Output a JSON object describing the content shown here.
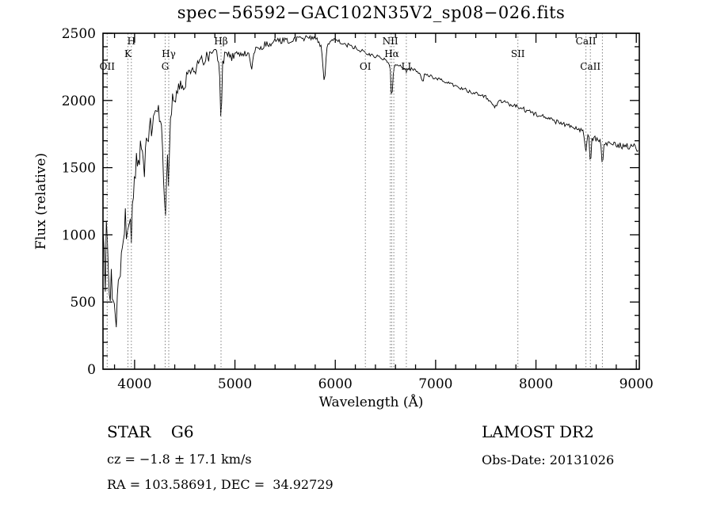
{
  "title": "spec−56592−GAC102N35V2_sp08−026.fits",
  "footer": {
    "object_type": "STAR    G6",
    "survey": "LAMOST DR2",
    "cz": "cz = −1.8 ± 17.1 km/s",
    "obs_date": "Obs-Date: 20131026",
    "ra_dec": "RA = 103.58691, DEC =  34.92729"
  },
  "chart_data": {
    "type": "line",
    "title": "spec-56592-GAC102N35V2_sp08-026.fits",
    "xlabel": "Wavelength (Å)",
    "ylabel": "Flux (relative)",
    "xlim": [
      3685,
      9030
    ],
    "ylim": [
      0,
      2500
    ],
    "x_ticks": [
      4000,
      5000,
      6000,
      7000,
      8000,
      9000
    ],
    "y_ticks": [
      0,
      500,
      1000,
      1500,
      2000,
      2500
    ],
    "x_minor_step": 200,
    "y_minor_step": 100,
    "grid": false,
    "legend": "none",
    "line_color": "#000000",
    "marker_color": "#808080",
    "spectral_lines": [
      {
        "wl": 3727,
        "label": "OII",
        "row": 3
      },
      {
        "wl": 3934,
        "label": "K",
        "row": 2
      },
      {
        "wl": 3968,
        "label": "H",
        "row": 1
      },
      {
        "wl": 4305,
        "label": "G",
        "row": 3
      },
      {
        "wl": 4340,
        "label": "Hγ",
        "row": 2
      },
      {
        "wl": 4861,
        "label": "Hβ",
        "row": 1
      },
      {
        "wl": 6300,
        "label": "OI",
        "row": 3
      },
      {
        "wl": 6548,
        "label": "NII",
        "row": 1
      },
      {
        "wl": 6563,
        "label": "Hα",
        "row": 2
      },
      {
        "wl": 6583,
        "label": "",
        "row": 0
      },
      {
        "wl": 6708,
        "label": "LI",
        "row": 3
      },
      {
        "wl": 7820,
        "label": "SII",
        "row": 2
      },
      {
        "wl": 8498,
        "label": "CaII",
        "row": 1
      },
      {
        "wl": 8542,
        "label": "CaII",
        "row": 3
      },
      {
        "wl": 8662,
        "label": "",
        "row": 0
      }
    ],
    "envelope": [
      [
        3690,
        950
      ],
      [
        3698,
        760
      ],
      [
        3706,
        560
      ],
      [
        3714,
        1020
      ],
      [
        3722,
        1080
      ],
      [
        3727,
        1020
      ],
      [
        3734,
        700
      ],
      [
        3742,
        580
      ],
      [
        3752,
        470
      ],
      [
        3760,
        400
      ],
      [
        3770,
        720
      ],
      [
        3780,
        600
      ],
      [
        3790,
        540
      ],
      [
        3800,
        500
      ],
      [
        3812,
        400
      ],
      [
        3822,
        330
      ],
      [
        3832,
        560
      ],
      [
        3842,
        700
      ],
      [
        3852,
        760
      ],
      [
        3862,
        700
      ],
      [
        3872,
        820
      ],
      [
        3882,
        950
      ],
      [
        3892,
        1060
      ],
      [
        3902,
        1120
      ],
      [
        3912,
        1080
      ],
      [
        3922,
        960
      ],
      [
        3930,
        900
      ],
      [
        3934,
        870
      ],
      [
        3940,
        1060
      ],
      [
        3948,
        1160
      ],
      [
        3956,
        1100
      ],
      [
        3962,
        1030
      ],
      [
        3968,
        990
      ],
      [
        3976,
        1180
      ],
      [
        3984,
        1320
      ],
      [
        4000,
        1470
      ],
      [
        4015,
        1530
      ],
      [
        4030,
        1560
      ],
      [
        4045,
        1600
      ],
      [
        4060,
        1640
      ],
      [
        4080,
        1660
      ],
      [
        4101,
        1450
      ],
      [
        4115,
        1680
      ],
      [
        4130,
        1740
      ],
      [
        4150,
        1780
      ],
      [
        4170,
        1820
      ],
      [
        4190,
        1860
      ],
      [
        4210,
        1880
      ],
      [
        4230,
        1900
      ],
      [
        4250,
        1880
      ],
      [
        4270,
        1750
      ],
      [
        4290,
        1350
      ],
      [
        4305,
        1100
      ],
      [
        4318,
        1420
      ],
      [
        4330,
        1600
      ],
      [
        4340,
        1300
      ],
      [
        4352,
        1750
      ],
      [
        4365,
        1950
      ],
      [
        4380,
        2000
      ],
      [
        4400,
        2030
      ],
      [
        4430,
        2060
      ],
      [
        4460,
        2090
      ],
      [
        4500,
        2140
      ],
      [
        4540,
        2180
      ],
      [
        4580,
        2220
      ],
      [
        4620,
        2250
      ],
      [
        4660,
        2280
      ],
      [
        4700,
        2310
      ],
      [
        4740,
        2330
      ],
      [
        4780,
        2345
      ],
      [
        4820,
        2350
      ],
      [
        4845,
        2280
      ],
      [
        4861,
        1800
      ],
      [
        4878,
        2280
      ],
      [
        4900,
        2340
      ],
      [
        4930,
        2350
      ],
      [
        4960,
        2330
      ],
      [
        4990,
        2320
      ],
      [
        5020,
        2330
      ],
      [
        5050,
        2345
      ],
      [
        5080,
        2355
      ],
      [
        5110,
        2360
      ],
      [
        5140,
        2330
      ],
      [
        5170,
        2240
      ],
      [
        5195,
        2360
      ],
      [
        5220,
        2380
      ],
      [
        5260,
        2400
      ],
      [
        5300,
        2415
      ],
      [
        5340,
        2425
      ],
      [
        5380,
        2435
      ],
      [
        5420,
        2440
      ],
      [
        5460,
        2445
      ],
      [
        5500,
        2450
      ],
      [
        5540,
        2445
      ],
      [
        5580,
        2450
      ],
      [
        5620,
        2455
      ],
      [
        5660,
        2460
      ],
      [
        5700,
        2465
      ],
      [
        5740,
        2470
      ],
      [
        5780,
        2470
      ],
      [
        5820,
        2455
      ],
      [
        5860,
        2400
      ],
      [
        5893,
        2120
      ],
      [
        5915,
        2400
      ],
      [
        5945,
        2440
      ],
      [
        5980,
        2450
      ],
      [
        6020,
        2445
      ],
      [
        6060,
        2435
      ],
      [
        6100,
        2420
      ],
      [
        6140,
        2405
      ],
      [
        6180,
        2395
      ],
      [
        6220,
        2385
      ],
      [
        6260,
        2370
      ],
      [
        6300,
        2345
      ],
      [
        6340,
        2345
      ],
      [
        6380,
        2335
      ],
      [
        6420,
        2325
      ],
      [
        6460,
        2315
      ],
      [
        6500,
        2300
      ],
      [
        6530,
        2285
      ],
      [
        6548,
        2230
      ],
      [
        6563,
        1980
      ],
      [
        6580,
        2230
      ],
      [
        6600,
        2270
      ],
      [
        6640,
        2260
      ],
      [
        6680,
        2250
      ],
      [
        6708,
        2215
      ],
      [
        6730,
        2240
      ],
      [
        6770,
        2230
      ],
      [
        6810,
        2220
      ],
      [
        6850,
        2180
      ],
      [
        6870,
        2130
      ],
      [
        6890,
        2190
      ],
      [
        6930,
        2185
      ],
      [
        6970,
        2175
      ],
      [
        7010,
        2165
      ],
      [
        7060,
        2150
      ],
      [
        7110,
        2135
      ],
      [
        7160,
        2120
      ],
      [
        7210,
        2105
      ],
      [
        7260,
        2090
      ],
      [
        7310,
        2075
      ],
      [
        7360,
        2062
      ],
      [
        7410,
        2050
      ],
      [
        7460,
        2035
      ],
      [
        7510,
        2020
      ],
      [
        7560,
        1990
      ],
      [
        7594,
        1950
      ],
      [
        7620,
        1995
      ],
      [
        7660,
        1990
      ],
      [
        7700,
        1982
      ],
      [
        7740,
        1972
      ],
      [
        7780,
        1962
      ],
      [
        7820,
        1950
      ],
      [
        7860,
        1940
      ],
      [
        7900,
        1928
      ],
      [
        7940,
        1916
      ],
      [
        7980,
        1905
      ],
      [
        8020,
        1893
      ],
      [
        8060,
        1882
      ],
      [
        8100,
        1870
      ],
      [
        8150,
        1856
      ],
      [
        8200,
        1842
      ],
      [
        8250,
        1828
      ],
      [
        8300,
        1815
      ],
      [
        8350,
        1802
      ],
      [
        8400,
        1790
      ],
      [
        8440,
        1778
      ],
      [
        8470,
        1768
      ],
      [
        8498,
        1600
      ],
      [
        8515,
        1745
      ],
      [
        8530,
        1735
      ],
      [
        8542,
        1495
      ],
      [
        8558,
        1725
      ],
      [
        8580,
        1718
      ],
      [
        8605,
        1710
      ],
      [
        8630,
        1700
      ],
      [
        8645,
        1695
      ],
      [
        8662,
        1475
      ],
      [
        8680,
        1685
      ],
      [
        8710,
        1680
      ],
      [
        8740,
        1675
      ],
      [
        8770,
        1670
      ],
      [
        8800,
        1668
      ],
      [
        8830,
        1665
      ],
      [
        8860,
        1662
      ],
      [
        8890,
        1660
      ],
      [
        8920,
        1658
      ],
      [
        8950,
        1658
      ],
      [
        8980,
        1655
      ],
      [
        9000,
        1660
      ],
      [
        9012,
        1600
      ],
      [
        9030,
        1640
      ]
    ],
    "noise_profile": [
      [
        3690,
        125
      ],
      [
        3900,
        115
      ],
      [
        4000,
        95
      ],
      [
        4200,
        85
      ],
      [
        4350,
        75
      ],
      [
        4500,
        55
      ],
      [
        4700,
        45
      ],
      [
        4900,
        38
      ],
      [
        5100,
        32
      ],
      [
        5300,
        26
      ],
      [
        5500,
        22
      ],
      [
        5800,
        18
      ],
      [
        6100,
        16
      ],
      [
        6500,
        14
      ],
      [
        7000,
        13
      ],
      [
        7400,
        14
      ],
      [
        7800,
        16
      ],
      [
        8200,
        18
      ],
      [
        8600,
        20
      ],
      [
        9030,
        24
      ]
    ]
  }
}
